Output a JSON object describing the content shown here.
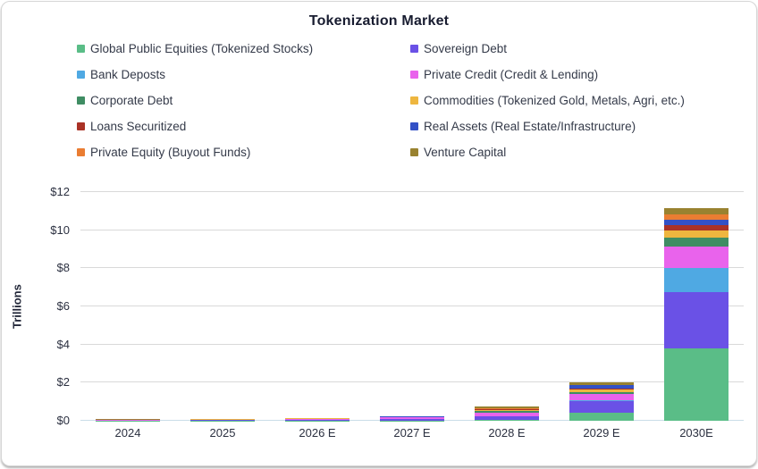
{
  "chart_data": {
    "type": "bar",
    "stacked": true,
    "title": "Tokenization Market",
    "ylabel": "Trillions",
    "ylim": [
      0,
      12
    ],
    "ytick_step": 2,
    "ytick_labels": [
      "$0",
      "$2",
      "$4",
      "$6",
      "$8",
      "$10",
      "$12"
    ],
    "grid": "horizontal",
    "legend_position": "top-two-columns",
    "categories": [
      "2024",
      "2025",
      "2026 E",
      "2027 E",
      "2028 E",
      "2029 E",
      "2030E"
    ],
    "units": "USD trillions",
    "series": [
      {
        "name": "Global Public Equities (Tokenized Stocks)",
        "color": "#5abd87",
        "values": [
          0.01,
          0.012,
          0.012,
          0.02,
          0.05,
          0.42,
          3.78
        ]
      },
      {
        "name": "Sovereign Debt",
        "color": "#6a51e6",
        "values": [
          0.01,
          0.015,
          0.05,
          0.06,
          0.18,
          0.6,
          2.98
        ]
      },
      {
        "name": "Bank Deposts",
        "color": "#4fa9e3",
        "values": [
          0.002,
          0.003,
          0.005,
          0.01,
          0.02,
          0.04,
          1.28
        ]
      },
      {
        "name": "Private Credit (Credit & Lending)",
        "color": "#e963ec",
        "values": [
          0.01,
          0.015,
          0.03,
          0.08,
          0.18,
          0.33,
          1.1
        ]
      },
      {
        "name": "Corporate Debt",
        "color": "#3f8d63",
        "values": [
          0.005,
          0.006,
          0.008,
          0.01,
          0.07,
          0.1,
          0.45
        ]
      },
      {
        "name": "Commodities (Tokenized Gold, Metals, Agri, etc.)",
        "color": "#eeb63f",
        "values": [
          0.02,
          0.025,
          0.02,
          0.02,
          0.08,
          0.17,
          0.4
        ]
      },
      {
        "name": "Loans Securitized",
        "color": "#aa3226",
        "values": [
          0.002,
          0.003,
          0.004,
          0.005,
          0.02,
          0.03,
          0.28
        ]
      },
      {
        "name": "Real Assets (Real Estate/Infrastructure)",
        "color": "#3351c6",
        "values": [
          0.004,
          0.005,
          0.008,
          0.01,
          0.03,
          0.17,
          0.28
        ]
      },
      {
        "name": "Private Equity (Buyout Funds)",
        "color": "#ea7d32",
        "values": [
          0.003,
          0.004,
          0.006,
          0.008,
          0.05,
          0.04,
          0.29
        ]
      },
      {
        "name": "Venture Capital",
        "color": "#998230",
        "values": [
          0.012,
          0.015,
          0.02,
          0.02,
          0.07,
          0.12,
          0.31
        ]
      }
    ]
  }
}
